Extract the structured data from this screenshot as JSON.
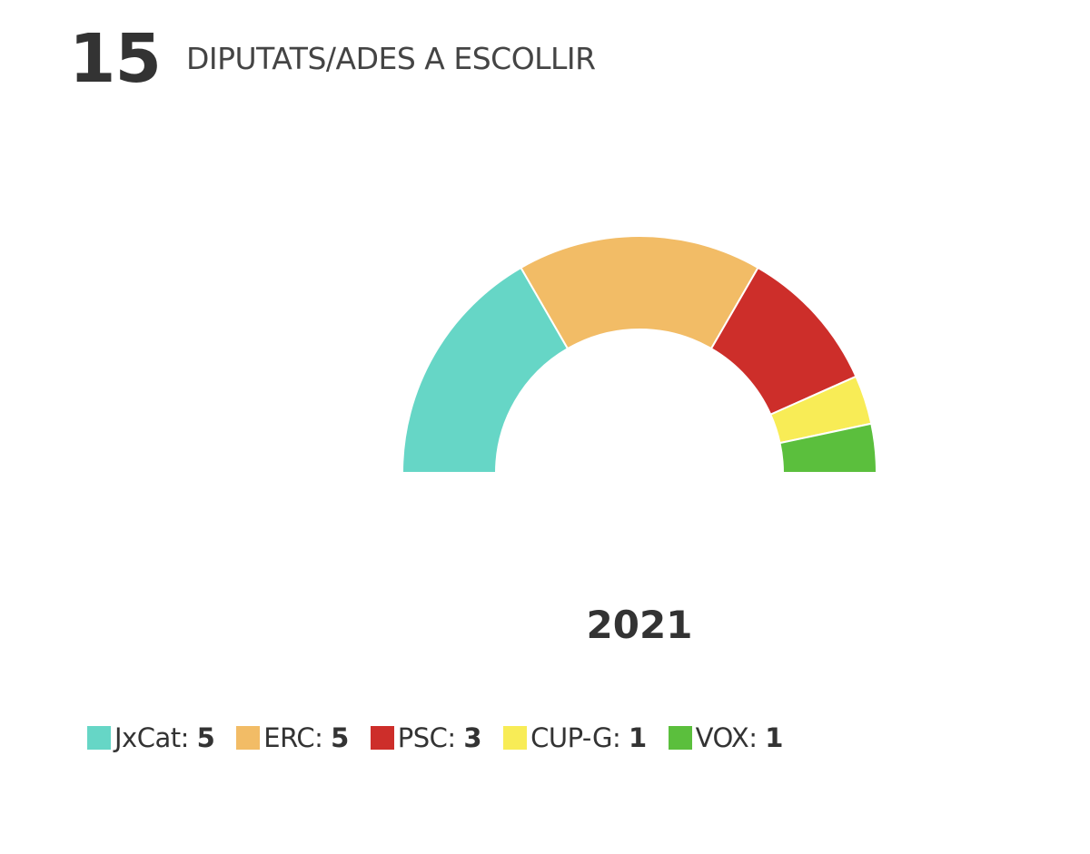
{
  "header": {
    "count": "15",
    "caption": "DIPUTATS/ADES A ESCOLLIR"
  },
  "chart_data": {
    "type": "pie",
    "variant": "semicircle-donut",
    "title": "2021",
    "total": 15,
    "categories": [
      "JxCat",
      "ERC",
      "PSC",
      "CUP-G",
      "VOX"
    ],
    "values": [
      5,
      5,
      3,
      1,
      1
    ],
    "colors": [
      "#66d6c6",
      "#f2bc66",
      "#cd2e2a",
      "#f8ec56",
      "#5bbf3d"
    ],
    "legend_position": "bottom"
  }
}
